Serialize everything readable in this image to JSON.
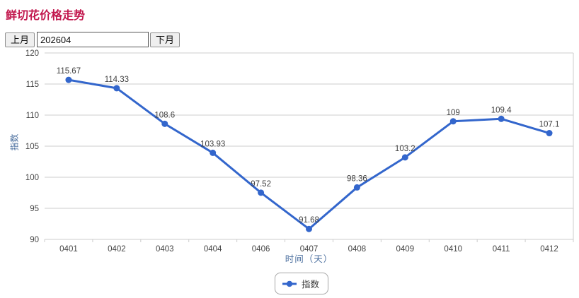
{
  "page": {
    "title": "鲜切花价格走势"
  },
  "controls": {
    "prev_label": "上月",
    "next_label": "下月",
    "month_value": "202604"
  },
  "chart_data": {
    "type": "line",
    "title": "鲜切花价格走势",
    "categories": [
      "0401",
      "0402",
      "0403",
      "0404",
      "0406",
      "0407",
      "0408",
      "0409",
      "0410",
      "0411",
      "0412"
    ],
    "series": [
      {
        "name": "指数",
        "values": [
          115.67,
          114.33,
          108.6,
          103.93,
          97.52,
          91.68,
          98.36,
          103.2,
          109,
          109.4,
          107.1
        ],
        "point_labels": [
          "115.67",
          "114.33",
          "108.6",
          "103.93",
          "97.52",
          "91.68",
          "98.36",
          "103.2",
          "109",
          "109.4",
          "107.1"
        ]
      }
    ],
    "xlabel": "时间（天）",
    "ylabel": "指数",
    "ylim": [
      90,
      120
    ],
    "yticks": [
      90,
      95,
      100,
      105,
      110,
      115,
      120
    ],
    "grid": true,
    "legend_position": "bottom",
    "legend_label": "指数"
  },
  "colors": {
    "title": "#c2184e",
    "line": "#3366cc",
    "point": "#3366cc",
    "gridline": "#cccccc",
    "tick_label": "#444444",
    "data_label": "#404040",
    "axis_title": "#4a6e9e"
  }
}
